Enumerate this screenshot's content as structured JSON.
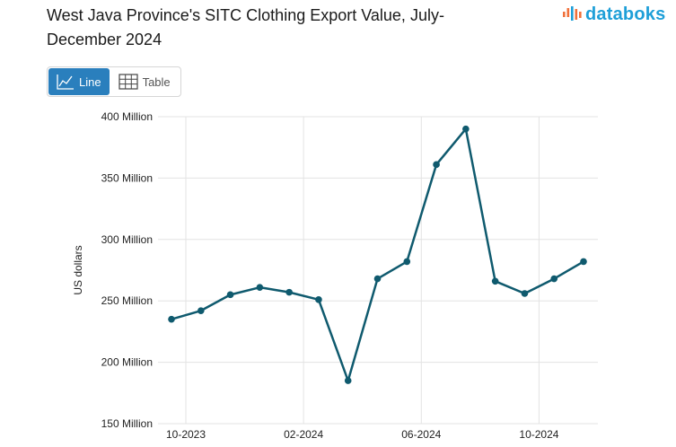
{
  "header": {
    "title": "West Java Province's SITC Clothing Export Value, July-December 2024",
    "logo_text": "databoks"
  },
  "view_toggle": {
    "line_label": "Line",
    "table_label": "Table",
    "active": "line"
  },
  "colors": {
    "line": "#0f5a6e",
    "accent": "#2a7fbd",
    "logo": "#1e9fd8",
    "logo_mark": "#f0703a"
  },
  "chart_data": {
    "type": "line",
    "title": "West Java Province's SITC Clothing Export Value, July-December 2024",
    "xlabel": "",
    "ylabel": "US dollars",
    "ylim": [
      150,
      400
    ],
    "y_unit": "Million",
    "y_ticks": [
      150,
      200,
      250,
      300,
      350,
      400
    ],
    "y_tick_labels": [
      "150 Million",
      "200 Million",
      "250 Million",
      "300 Million",
      "350 Million",
      "400 Million"
    ],
    "x": [
      "2023-10",
      "2023-11",
      "2023-12",
      "2024-01",
      "2024-02",
      "2024-03",
      "2024-04",
      "2024-05",
      "2024-06",
      "2024-07",
      "2024-08",
      "2024-09",
      "2024-10",
      "2024-11",
      "2024-12"
    ],
    "x_tick_labels": [
      {
        "index": 0,
        "label": "10-2023"
      },
      {
        "index": 4,
        "label": "02-2024"
      },
      {
        "index": 8,
        "label": "06-2024"
      },
      {
        "index": 12,
        "label": "10-2024"
      }
    ],
    "series": [
      {
        "name": "Export Value (US dollars, Million)",
        "values": [
          235,
          242,
          255,
          261,
          257,
          251,
          185,
          268,
          282,
          361,
          390,
          266,
          256,
          268,
          282
        ]
      }
    ],
    "grid": true,
    "legend": "none"
  }
}
